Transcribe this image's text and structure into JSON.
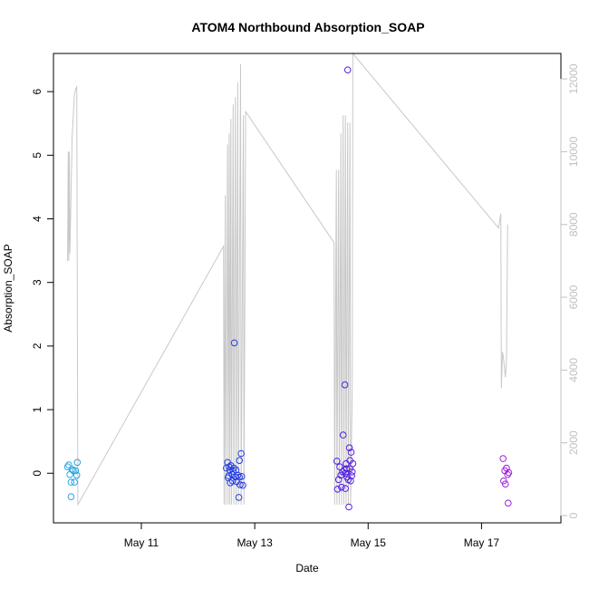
{
  "chart_data": {
    "type": "scatter",
    "title": "ATOM4 Northbound Absorption_SOAP",
    "xlabel": "Date",
    "ylabel": "Absorption_SOAP",
    "x_unit": "days (May 2012)",
    "xlim": [
      9.45,
      18.4
    ],
    "ylim": [
      -0.78,
      6.6
    ],
    "y2lim": [
      -200,
      12700
    ],
    "x_ticks": [
      {
        "value": 11,
        "label": "May 11"
      },
      {
        "value": 13,
        "label": "May 13"
      },
      {
        "value": 15,
        "label": "May 15"
      },
      {
        "value": 17,
        "label": "May 17"
      }
    ],
    "y_ticks": [
      0,
      1,
      2,
      3,
      4,
      5,
      6
    ],
    "y2_ticks": [
      0,
      2000,
      4000,
      6000,
      8000,
      10000,
      12000
    ],
    "colors": {
      "line": "#c8c8c8",
      "right_axis": "#c0c0c0",
      "axis": "#000000",
      "scatter_gradient": [
        "#29a8e0",
        "#1f5fe8",
        "#2b1fe0",
        "#7a1fe0",
        "#a11fe0"
      ]
    },
    "scatter": [
      {
        "x": 9.7,
        "y": 0.1
      },
      {
        "x": 9.72,
        "y": 0.13
      },
      {
        "x": 9.74,
        "y": -0.02
      },
      {
        "x": 9.76,
        "y": -0.14
      },
      {
        "x": 9.76,
        "y": -0.37
      },
      {
        "x": 9.78,
        "y": 0.06
      },
      {
        "x": 9.8,
        "y": 0.04
      },
      {
        "x": 9.82,
        "y": -0.14
      },
      {
        "x": 9.84,
        "y": 0.04
      },
      {
        "x": 9.86,
        "y": -0.03
      },
      {
        "x": 9.87,
        "y": 0.17
      },
      {
        "x": 12.5,
        "y": 0.08
      },
      {
        "x": 12.52,
        "y": 0.17
      },
      {
        "x": 12.53,
        "y": -0.07
      },
      {
        "x": 12.54,
        "y": -0.04
      },
      {
        "x": 12.55,
        "y": 0.1
      },
      {
        "x": 12.56,
        "y": 0.05
      },
      {
        "x": 12.57,
        "y": -0.15
      },
      {
        "x": 12.58,
        "y": 0.12
      },
      {
        "x": 12.6,
        "y": -0.02
      },
      {
        "x": 12.61,
        "y": -0.12
      },
      {
        "x": 12.62,
        "y": 0.03
      },
      {
        "x": 12.63,
        "y": 0.08
      },
      {
        "x": 12.64,
        "y": 2.05
      },
      {
        "x": 12.66,
        "y": -0.06
      },
      {
        "x": 12.67,
        "y": 0.05
      },
      {
        "x": 12.68,
        "y": -0.13
      },
      {
        "x": 12.7,
        "y": -0.03
      },
      {
        "x": 12.72,
        "y": -0.38
      },
      {
        "x": 12.73,
        "y": -0.06
      },
      {
        "x": 12.74,
        "y": -0.18
      },
      {
        "x": 12.76,
        "y": 0.31
      },
      {
        "x": 12.77,
        "y": -0.05
      },
      {
        "x": 12.79,
        "y": -0.19
      },
      {
        "x": 12.73,
        "y": 0.2
      },
      {
        "x": 14.45,
        "y": 0.19
      },
      {
        "x": 14.46,
        "y": -0.25
      },
      {
        "x": 14.48,
        "y": -0.1
      },
      {
        "x": 14.5,
        "y": 0.1
      },
      {
        "x": 14.52,
        "y": -0.03
      },
      {
        "x": 14.53,
        "y": -0.22
      },
      {
        "x": 14.55,
        "y": 0.02
      },
      {
        "x": 14.56,
        "y": 0.6
      },
      {
        "x": 14.58,
        "y": 0.05
      },
      {
        "x": 14.59,
        "y": 1.39
      },
      {
        "x": 14.6,
        "y": -0.24
      },
      {
        "x": 14.61,
        "y": 0.15
      },
      {
        "x": 14.62,
        "y": 0.07
      },
      {
        "x": 14.63,
        "y": -0.06
      },
      {
        "x": 14.64,
        "y": 6.34
      },
      {
        "x": 14.65,
        "y": -0.1
      },
      {
        "x": 14.66,
        "y": -0.53
      },
      {
        "x": 14.67,
        "y": 0.4
      },
      {
        "x": 14.68,
        "y": 0.07
      },
      {
        "x": 14.69,
        "y": -0.12
      },
      {
        "x": 14.7,
        "y": 0.33
      },
      {
        "x": 14.71,
        "y": -0.04
      },
      {
        "x": 14.72,
        "y": 0.02
      },
      {
        "x": 14.73,
        "y": 0.15
      },
      {
        "x": 14.6,
        "y": 0.0
      },
      {
        "x": 14.68,
        "y": 0.2
      },
      {
        "x": 17.38,
        "y": 0.23
      },
      {
        "x": 17.39,
        "y": -0.12
      },
      {
        "x": 17.41,
        "y": 0.04
      },
      {
        "x": 17.42,
        "y": -0.17
      },
      {
        "x": 17.44,
        "y": 0.08
      },
      {
        "x": 17.46,
        "y": -0.02
      },
      {
        "x": 17.47,
        "y": -0.47
      },
      {
        "x": 17.48,
        "y": 0.01
      }
    ],
    "line_right_axis": [
      [
        9.7,
        7000
      ],
      [
        9.71,
        10000
      ],
      [
        9.72,
        7000
      ],
      [
        9.73,
        10000
      ],
      [
        9.74,
        7200
      ],
      [
        9.78,
        10400
      ],
      [
        9.82,
        11600
      ],
      [
        9.86,
        11800
      ],
      [
        9.88,
        300
      ],
      [
        12.45,
        7400
      ],
      [
        12.46,
        300
      ],
      [
        12.48,
        8800
      ],
      [
        12.49,
        300
      ],
      [
        12.52,
        10200
      ],
      [
        12.53,
        300
      ],
      [
        12.55,
        10500
      ],
      [
        12.56,
        300
      ],
      [
        12.58,
        10900
      ],
      [
        12.59,
        300
      ],
      [
        12.62,
        11300
      ],
      [
        12.63,
        300
      ],
      [
        12.66,
        11500
      ],
      [
        12.67,
        300
      ],
      [
        12.7,
        11900
      ],
      [
        12.71,
        300
      ],
      [
        12.75,
        12400
      ],
      [
        12.76,
        300
      ],
      [
        12.8,
        11000
      ],
      [
        12.81,
        300
      ],
      [
        12.84,
        11100
      ],
      [
        14.4,
        7500
      ],
      [
        14.41,
        300
      ],
      [
        14.44,
        9500
      ],
      [
        14.45,
        300
      ],
      [
        14.48,
        9500
      ],
      [
        14.49,
        300
      ],
      [
        14.52,
        10500
      ],
      [
        14.53,
        300
      ],
      [
        14.56,
        11000
      ],
      [
        14.57,
        300
      ],
      [
        14.6,
        11000
      ],
      [
        14.61,
        300
      ],
      [
        14.64,
        10800
      ],
      [
        14.65,
        300
      ],
      [
        14.68,
        10800
      ],
      [
        14.69,
        300
      ],
      [
        14.72,
        3500
      ],
      [
        14.73,
        12700
      ],
      [
        17.3,
        7900
      ],
      [
        17.34,
        8300
      ],
      [
        17.35,
        3500
      ],
      [
        17.37,
        4500
      ],
      [
        17.39,
        4300
      ],
      [
        17.42,
        3800
      ],
      [
        17.44,
        4200
      ],
      [
        17.46,
        8000
      ]
    ]
  }
}
